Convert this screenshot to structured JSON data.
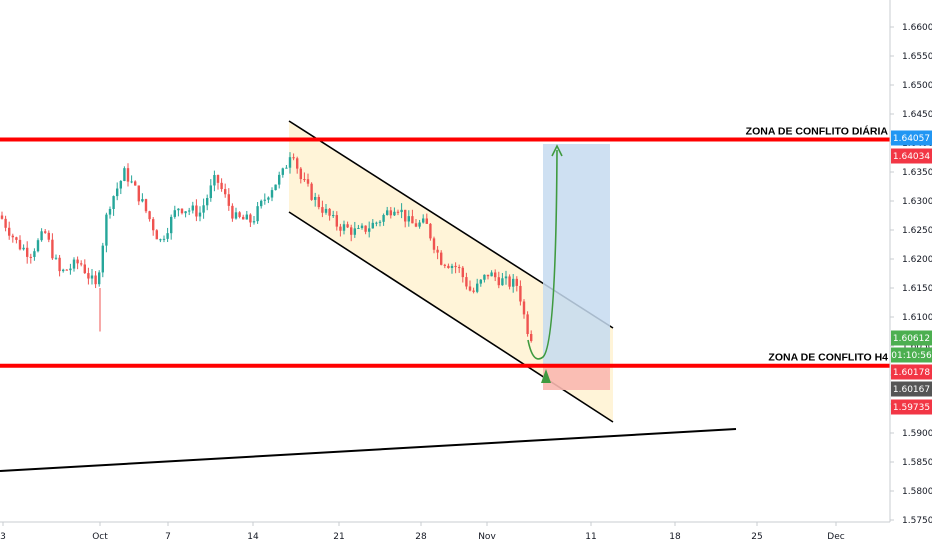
{
  "chart_data": {
    "type": "candlestick",
    "x_tick_labels": [
      "3",
      "Oct",
      "7",
      "14",
      "21",
      "28",
      "Nov",
      "11",
      "18",
      "25",
      "Dec"
    ],
    "y_tick_labels": [
      "1.66000",
      "1.65500",
      "1.65000",
      "1.64500",
      "1.64000",
      "1.63500",
      "1.63000",
      "1.62500",
      "1.62000",
      "1.61500",
      "1.61000",
      "1.60500",
      "1.60000",
      "1.59500",
      "1.59000",
      "1.58500",
      "1.58000",
      "1.57500"
    ],
    "ylim": [
      1.574,
      1.6645
    ],
    "annotations": {
      "upper_zone": {
        "label": "ZONA DE CONFLITO DIÁRIA",
        "price": 1.6406
      },
      "lower_zone": {
        "label": "ZONA DE CONFLITO H4",
        "price": 1.6016
      }
    },
    "price_badges": [
      {
        "text": "1.64057",
        "color": "#2196f3"
      },
      {
        "text": "1.64034",
        "color": "#f23645"
      },
      {
        "text": "1.60612",
        "color": "#4caf50"
      },
      {
        "text": "01:10:56",
        "color": "#4caf50"
      },
      {
        "text": "1.60178",
        "color": "#f23645"
      },
      {
        "text": "1.60167",
        "color": "#555555"
      },
      {
        "text": "1.59735",
        "color": "#f23645"
      }
    ],
    "colors": {
      "up": "#26a69a",
      "down": "#ef5350",
      "zone_line": "#ff0000",
      "channel_fill": "#fff3d6",
      "target_fill": "#c6dbf0",
      "stop_fill": "#f9b8b0",
      "arrow": "#3f9a3f"
    }
  }
}
